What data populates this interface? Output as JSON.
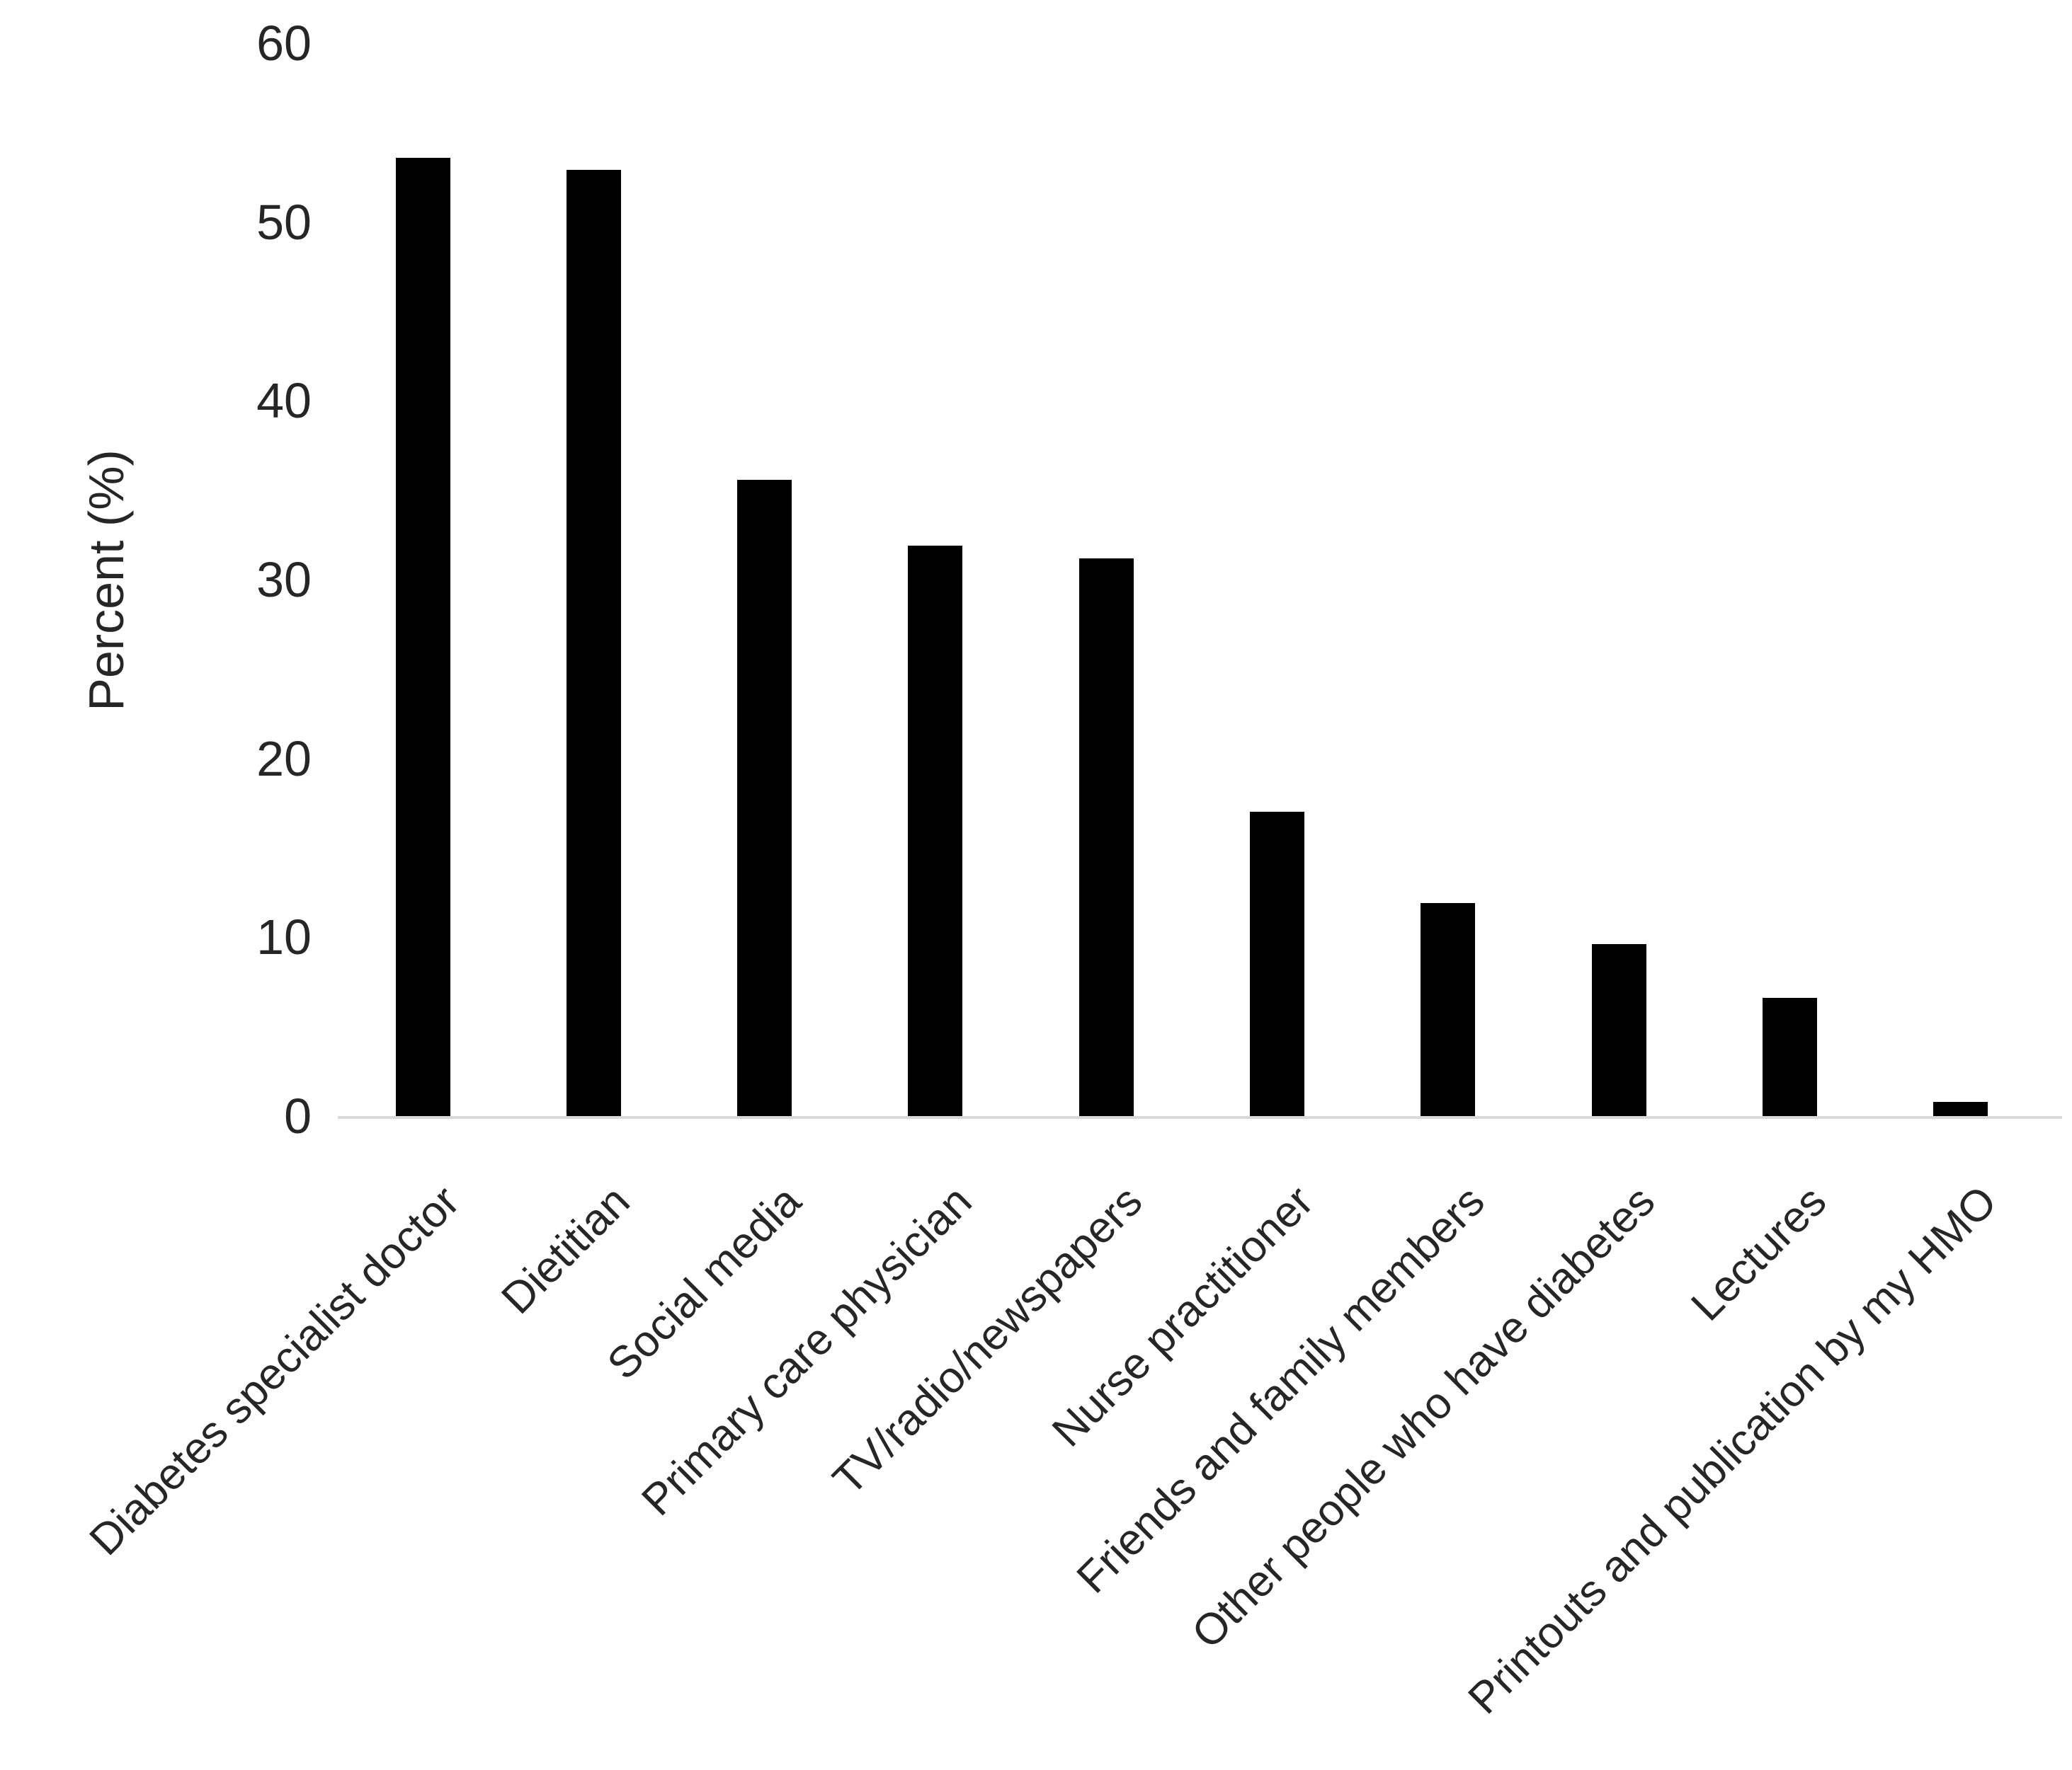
{
  "figure": {
    "background_color": "#ffffff",
    "text_color": "#262626"
  },
  "chart_data": {
    "type": "bar",
    "title": "",
    "xlabel": "",
    "ylabel": "Percent (%)",
    "categories": [
      "Diabetes specialist doctor",
      "Dietitian",
      "Social media",
      "Primary care physician",
      "TV/radio/newspapers",
      "Nurse practitioner",
      "Friends and family members",
      "Other people who have diabetes",
      "Lectures",
      "Printouts and publication by my HMO"
    ],
    "values": [
      53.6,
      52.9,
      35.6,
      31.9,
      31.2,
      17.0,
      11.9,
      9.6,
      6.6,
      0.8
    ],
    "ylim": [
      0,
      60
    ],
    "yticks": [
      0,
      10,
      20,
      30,
      40,
      50,
      60
    ],
    "grid": false,
    "legend": null,
    "x_label_rotation_deg": 45,
    "bar_color": "#000000",
    "axis_line_color": "#d9d9d9"
  }
}
